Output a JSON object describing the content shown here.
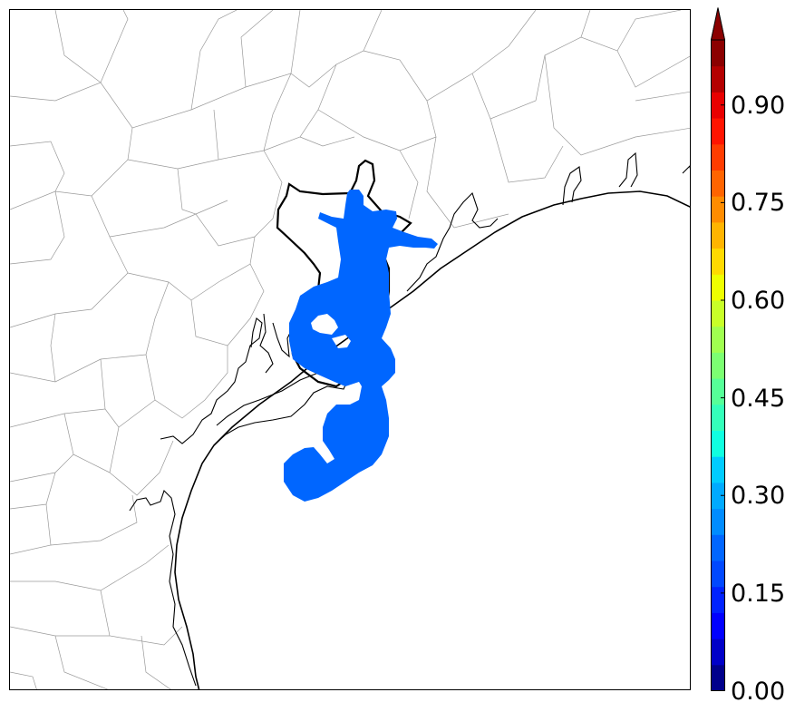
{
  "colorbar": {
    "tick_labels": [
      "0.00",
      "0.15",
      "0.30",
      "0.45",
      "0.60",
      "0.75",
      "0.90"
    ],
    "tick_values": [
      0.0,
      0.15,
      0.3,
      0.45,
      0.6,
      0.75,
      0.9
    ],
    "range": [
      0.0,
      1.0
    ],
    "extend": "max",
    "colors": [
      "#00008b",
      "#0000c8",
      "#0000ff",
      "#0022ff",
      "#0048ff",
      "#0066ff",
      "#008cff",
      "#00aaff",
      "#00ccff",
      "#10ffe0",
      "#34ffba",
      "#56ff98",
      "#7cff72",
      "#a0ff50",
      "#c8ff28",
      "#eeff00",
      "#ffda00",
      "#ffb400",
      "#ff8c00",
      "#ff6400",
      "#ff3c00",
      "#ff1400",
      "#e80000",
      "#b40000",
      "#8b0000"
    ]
  },
  "map": {
    "plume_value": 0.2,
    "plume_color": "#0066ff",
    "coast_color": "#000000",
    "county_line_color": "#9a9a9a"
  }
}
